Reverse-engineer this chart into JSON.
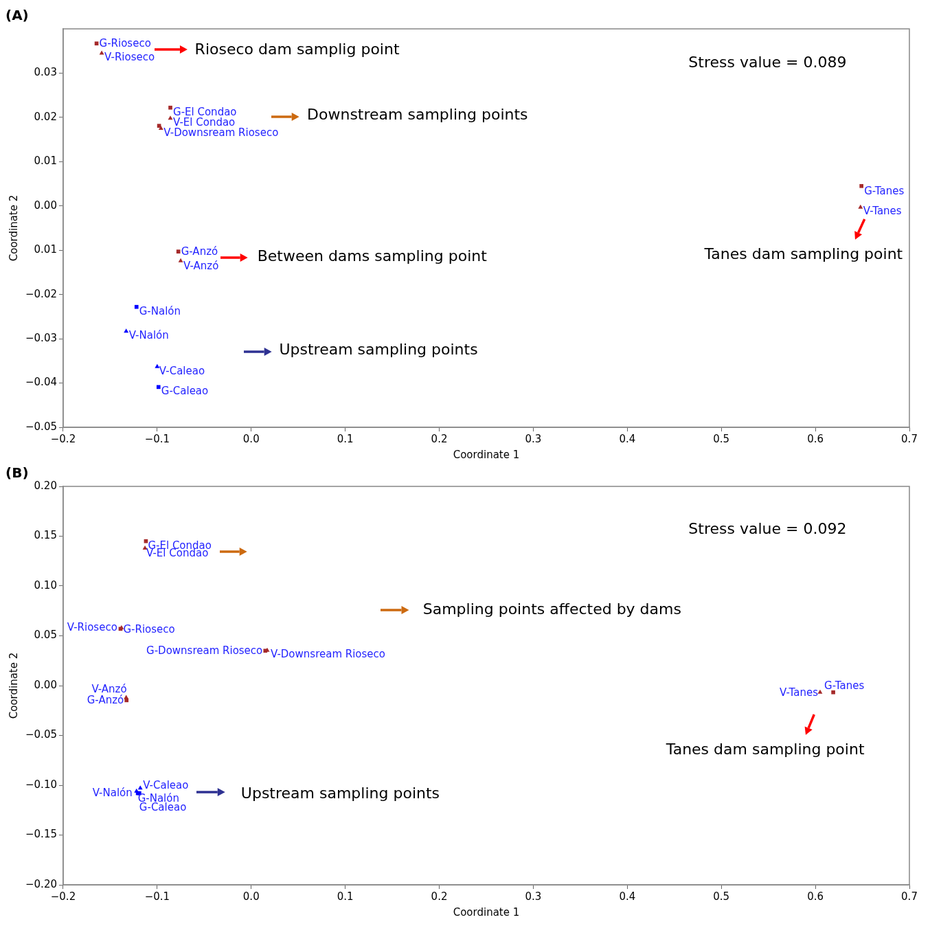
{
  "chart_data": [
    {
      "type": "scatter",
      "title": "(A)",
      "xlabel": "Coordinate 1",
      "ylabel": "Coordinate 2",
      "xlim": [
        -0.2,
        0.7
      ],
      "ylim": [
        -0.05,
        0.04
      ],
      "xticks": [
        {
          "value": -0.2,
          "label": "−0.2"
        },
        {
          "value": -0.1,
          "label": "−0.1"
        },
        {
          "value": 0,
          "label": "0.0"
        },
        {
          "value": 0.1,
          "label": "0.1"
        },
        {
          "value": 0.2,
          "label": "0.2"
        },
        {
          "value": 0.3,
          "label": "0.3"
        },
        {
          "value": 0.4,
          "label": "0.4"
        },
        {
          "value": 0.5,
          "label": "0.5"
        },
        {
          "value": 0.6,
          "label": "0.6"
        },
        {
          "value": 0.7,
          "label": "0.7"
        }
      ],
      "yticks": [
        {
          "value": -0.05,
          "label": "−0.05"
        },
        {
          "value": -0.04,
          "label": "−0.04"
        },
        {
          "value": -0.03,
          "label": "−0.03"
        },
        {
          "value": -0.02,
          "label": "−0.02"
        },
        {
          "value": -0.01,
          "label": "0.01"
        },
        {
          "value": 0,
          "label": "0.00"
        },
        {
          "value": 0.01,
          "label": "0.01"
        },
        {
          "value": 0.02,
          "label": "0.02"
        },
        {
          "value": 0.03,
          "label": "0.03"
        }
      ],
      "series": [
        {
          "marker": "square",
          "x": [
            -0.1645,
            -0.086,
            -0.098,
            0.649,
            -0.0775,
            -0.122,
            -0.0986
          ],
          "values": [
            0.0367,
            0.0222,
            0.0181,
            0.0045,
            -0.0103,
            -0.0228,
            -0.0409
          ],
          "colors": [
            "#a52a2a",
            "#a52a2a",
            "#a52a2a",
            "#a52a2a",
            "#a52a2a",
            "#0000ff",
            "#0000ff"
          ]
        },
        {
          "marker": "triangle",
          "x": [
            -0.159,
            -0.086,
            -0.096,
            0.648,
            -0.075,
            -0.133,
            -0.1
          ],
          "values": [
            0.0345,
            0.0198,
            0.0175,
            -0.0003,
            -0.0124,
            -0.0283,
            -0.0363
          ],
          "colors": [
            "#a52a2a",
            "#a52a2a",
            "#a52a2a",
            "#a52a2a",
            "#a52a2a",
            "#0000ff",
            "#0000ff"
          ]
        }
      ],
      "annotations": [
        {
          "text": "G-Rioseco",
          "x": -0.1645,
          "y": 0.0367
        },
        {
          "text": "V-Rioseco",
          "x": -0.159,
          "y": 0.0345
        },
        {
          "text": "G-El Condao",
          "x": -0.086,
          "y": 0.0222
        },
        {
          "text": "V-El Condao",
          "x": -0.086,
          "y": 0.0198
        },
        {
          "text": "V-Downsream Rioseco",
          "x": -0.096,
          "y": 0.0175
        },
        {
          "text": "G-Tanes",
          "x": 0.649,
          "y": 0.0045
        },
        {
          "text": "V-Tanes",
          "x": 0.648,
          "y": -0.0003
        },
        {
          "text": "G-Anzó",
          "x": -0.0775,
          "y": -0.0103
        },
        {
          "text": "V-Anzó",
          "x": -0.075,
          "y": -0.0124
        },
        {
          "text": "G-Nalón",
          "x": -0.122,
          "y": -0.0228
        },
        {
          "text": "V-Nalón",
          "x": -0.133,
          "y": -0.0283
        },
        {
          "text": "V-Caleao",
          "x": -0.1,
          "y": -0.0363
        },
        {
          "text": "G-Caleao",
          "x": -0.0986,
          "y": -0.0409
        },
        "Rioseco dam samplig point",
        "Downstream sampling points",
        "Stress value = 0.089",
        "Between dams sampling point",
        "Upstream sampling points",
        "Tanes dam sampling point"
      ]
    },
    {
      "type": "scatter",
      "title": "(B)",
      "xlabel": "Coordinate 1",
      "ylabel": "Coordinate 2",
      "xlim": [
        -0.2,
        0.7
      ],
      "ylim": [
        -0.2,
        0.2
      ],
      "xticks": [
        {
          "value": -0.2,
          "label": "−0.2"
        },
        {
          "value": -0.1,
          "label": "−0.1"
        },
        {
          "value": 0,
          "label": "0.0"
        },
        {
          "value": 0.1,
          "label": "0.1"
        },
        {
          "value": 0.2,
          "label": "0.2"
        },
        {
          "value": 0.3,
          "label": "0.3"
        },
        {
          "value": 0.4,
          "label": "0.4"
        },
        {
          "value": 0.5,
          "label": "0.5"
        },
        {
          "value": 0.6,
          "label": "0.6"
        },
        {
          "value": 0.7,
          "label": "0.7"
        }
      ],
      "yticks": [
        {
          "value": -0.2,
          "label": "−0.20"
        },
        {
          "value": -0.15,
          "label": "−0.15"
        },
        {
          "value": -0.1,
          "label": "−0.10"
        },
        {
          "value": -0.05,
          "label": "−0.05"
        },
        {
          "value": 0,
          "label": "0.00"
        },
        {
          "value": 0.05,
          "label": "0.05"
        },
        {
          "value": 0.1,
          "label": "0.10"
        },
        {
          "value": 0.15,
          "label": "0.15"
        },
        {
          "value": 0.2,
          "label": "0.20"
        }
      ],
      "series": [
        {
          "marker": "square",
          "x": [
            -0.112,
            -0.139,
            0.015,
            -0.1326,
            0.619,
            -0.1206,
            -0.119
          ],
          "values": [
            0.145,
            0.057,
            0.035,
            -0.0147,
            -0.0067,
            -0.108,
            -0.108
          ],
          "colors": [
            "#a52a2a",
            "#a52a2a",
            "#a52a2a",
            "#a52a2a",
            "#a52a2a",
            "#0000ff",
            "#0000ff"
          ]
        },
        {
          "marker": "triangle",
          "x": [
            -0.113,
            -0.138,
            0.017,
            -0.133,
            0.605,
            -0.122,
            -0.118
          ],
          "values": [
            0.138,
            0.058,
            0.0353,
            -0.012,
            -0.0067,
            -0.106,
            -0.103
          ],
          "colors": [
            "#a52a2a",
            "#a52a2a",
            "#a52a2a",
            "#a52a2a",
            "#a52a2a",
            "#0000ff",
            "#0000ff"
          ]
        }
      ],
      "annotations": [
        {
          "text": "G-El Condao",
          "x": -0.112,
          "y": 0.145
        },
        {
          "text": "V-El Condao",
          "x": -0.113,
          "y": 0.138
        },
        {
          "text": "V-Rioseco",
          "x": -0.138,
          "y": 0.058
        },
        {
          "text": "G-Rioseco",
          "x": -0.139,
          "y": 0.057
        },
        {
          "text": "G-Downsream Rioseco",
          "x": 0.015,
          "y": 0.035
        },
        {
          "text": "V-Downsream Rioseco",
          "x": 0.017,
          "y": 0.0353
        },
        {
          "text": "V-Anzó",
          "x": -0.133,
          "y": -0.012
        },
        {
          "text": "G-Anzó",
          "x": -0.1326,
          "y": -0.0147
        },
        {
          "text": "G-Tanes",
          "x": 0.619,
          "y": -0.0067
        },
        {
          "text": "V-Tanes",
          "x": 0.605,
          "y": -0.0067
        },
        {
          "text": "V-Nalón",
          "x": -0.122,
          "y": -0.106
        },
        {
          "text": "V-Caleao",
          "x": -0.118,
          "y": -0.103
        },
        {
          "text": "G-Nalón",
          "x": -0.1206,
          "y": -0.108
        },
        {
          "text": "G-Caleao",
          "x": -0.119,
          "y": -0.108
        },
        "Stress value = 0.092",
        "Sampling points affected by dams",
        "Tanes dam sampling point",
        "Upstream sampling points"
      ]
    }
  ]
}
